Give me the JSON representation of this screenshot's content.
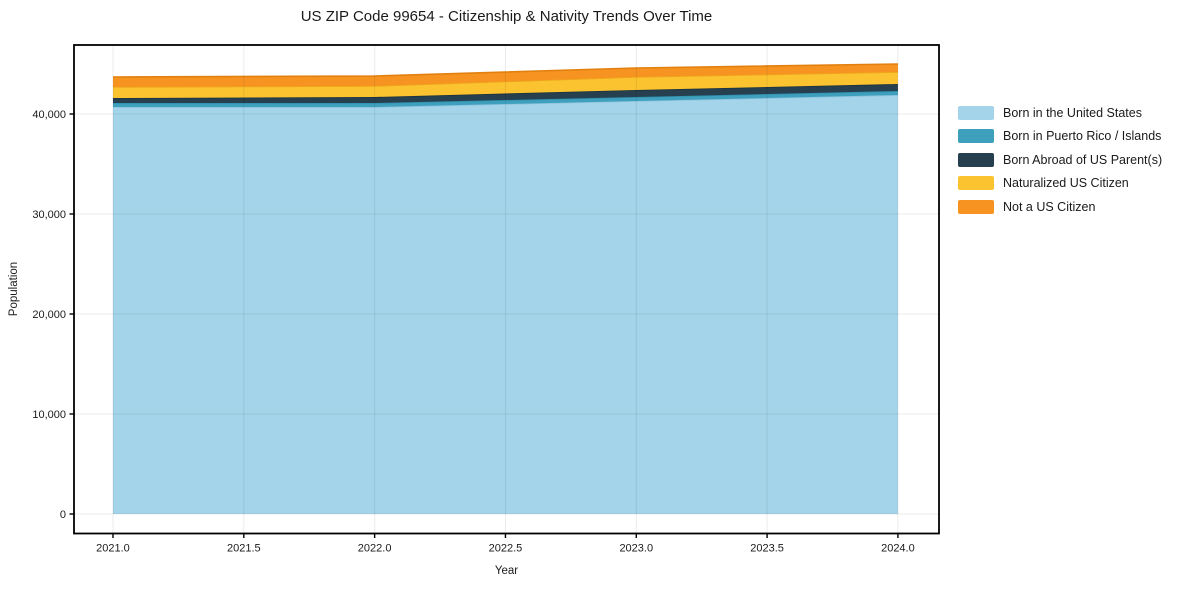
{
  "chart": {
    "title": "US ZIP Code 99654 - Citizenship & Nativity Trends Over Time",
    "xlabel": "Year",
    "ylabel": "Population"
  },
  "chart_data": {
    "type": "area",
    "stacked": true,
    "title": "US ZIP Code 99654 - Citizenship & Nativity Trends Over Time",
    "xlabel": "Year",
    "ylabel": "Population",
    "x": [
      2021,
      2022,
      2023,
      2024
    ],
    "series": [
      {
        "name": "Born in the United States",
        "values": [
          40700,
          40700,
          41300,
          41900
        ],
        "color": "#a3d4ea",
        "edge": "#8cc2dd"
      },
      {
        "name": "Born in Puerto Rico / Islands",
        "values": [
          400,
          400,
          400,
          400
        ],
        "color": "#3fa0be",
        "edge": "#2f8fae"
      },
      {
        "name": "Born Abroad of US Parent(s)",
        "values": [
          500,
          600,
          700,
          700
        ],
        "color": "#26404f",
        "edge": "#1c3340"
      },
      {
        "name": "Naturalized US Citizen",
        "values": [
          1100,
          1100,
          1300,
          1200
        ],
        "color": "#fcc330",
        "edge": "#eda91c"
      },
      {
        "name": "Not a US Citizen",
        "values": [
          1000,
          1000,
          900,
          800
        ],
        "color": "#f79421",
        "edge": "#e2800f"
      }
    ],
    "totals": [
      43700,
      43800,
      44600,
      45000
    ],
    "xlim": [
      2020.851,
      2024.157
    ],
    "ylim": [
      -1950,
      46900
    ],
    "x_ticks": [
      {
        "value": 2021.0,
        "label": "2021.0"
      },
      {
        "value": 2021.5,
        "label": "2021.5"
      },
      {
        "value": 2022.0,
        "label": "2022.0"
      },
      {
        "value": 2022.5,
        "label": "2022.5"
      },
      {
        "value": 2023.0,
        "label": "2023.0"
      },
      {
        "value": 2023.5,
        "label": "2023.5"
      },
      {
        "value": 2024.0,
        "label": "2024.0"
      }
    ],
    "y_ticks": [
      {
        "value": 0,
        "label": "0"
      },
      {
        "value": 10000,
        "label": "10,000"
      },
      {
        "value": 20000,
        "label": "20,000"
      },
      {
        "value": 30000,
        "label": "30,000"
      },
      {
        "value": 40000,
        "label": "40,000"
      }
    ],
    "grid": true,
    "grid_color": "rgba(0,0,0,0.08)",
    "axis_color": "#000000",
    "tick_label_color": "#1a1a1a",
    "legend_position": "right-outside"
  }
}
